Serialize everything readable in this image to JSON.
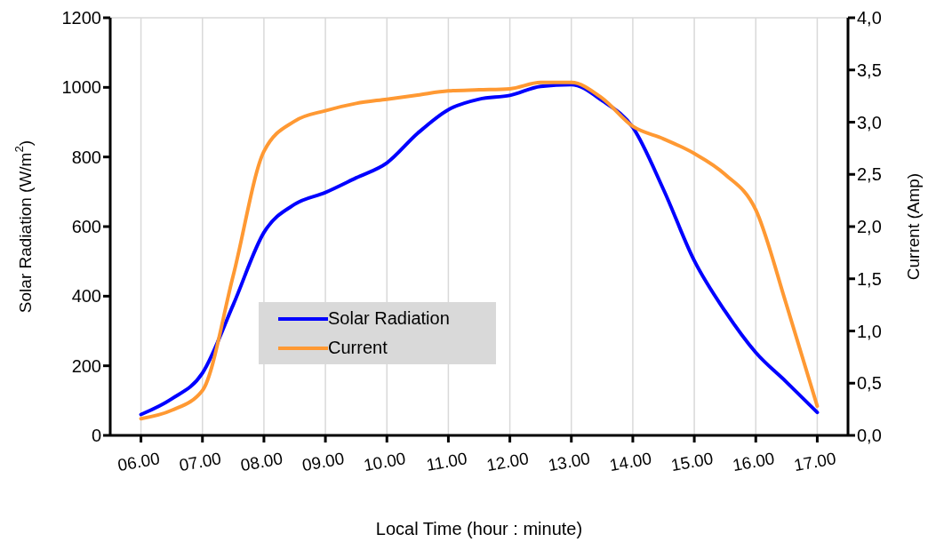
{
  "chart_data": {
    "type": "line",
    "xlabel": "Local Time (hour : minute)",
    "ylabel": "Solar Radiation (W/m$^{2}$)",
    "y2label": "Current (Amp)",
    "x": [
      6,
      6.5,
      7,
      7.5,
      8,
      8.5,
      9,
      9.5,
      10,
      10.5,
      11,
      11.5,
      12,
      12.5,
      13,
      13.5,
      14,
      14.5,
      15,
      15.5,
      16,
      16.5,
      17
    ],
    "series": [
      {
        "name": "Solar Radiation",
        "color": "#0000ff",
        "values": [
          60,
          105,
          179,
          375,
          583,
          664,
          698,
          740,
          783,
          868,
          936,
          966,
          977,
          1003,
          1008,
          962,
          885,
          706,
          502,
          357,
          238,
          153,
          66
        ]
      },
      {
        "name": "Current",
        "color": "#ff9933",
        "axis": "y2",
        "values": [
          0.16,
          0.24,
          0.43,
          1.53,
          2.72,
          3.01,
          3.11,
          3.18,
          3.22,
          3.26,
          3.3,
          3.31,
          3.32,
          3.38,
          3.38,
          3.23,
          2.96,
          2.84,
          2.7,
          2.5,
          2.16,
          1.25,
          0.28
        ]
      }
    ],
    "xlim": [
      5.5,
      17.5
    ],
    "xticks": [
      {
        "value": 6,
        "label": "06.00"
      },
      {
        "value": 7,
        "label": "07.00"
      },
      {
        "value": 8,
        "label": "08.00"
      },
      {
        "value": 9,
        "label": "09.00"
      },
      {
        "value": 10,
        "label": "10.00"
      },
      {
        "value": 11,
        "label": "11.00"
      },
      {
        "value": 12,
        "label": "12.00"
      },
      {
        "value": 13,
        "label": "13.00"
      },
      {
        "value": 14,
        "label": "14.00"
      },
      {
        "value": 15,
        "label": "15.00"
      },
      {
        "value": 16,
        "label": "16.00"
      },
      {
        "value": 17,
        "label": "17.00"
      }
    ],
    "ylim": [
      0,
      1200
    ],
    "yticks": [
      0,
      200,
      400,
      600,
      800,
      1000,
      1200
    ],
    "y2lim": [
      0,
      4
    ],
    "y2ticks": [
      {
        "value": 0,
        "label": "0,0"
      },
      {
        "value": 0.5,
        "label": "0,5"
      },
      {
        "value": 1,
        "label": "1,0"
      },
      {
        "value": 1.5,
        "label": "1,5"
      },
      {
        "value": 2,
        "label": "2,0"
      },
      {
        "value": 2.5,
        "label": "2,5"
      },
      {
        "value": 3,
        "label": "3,0"
      },
      {
        "value": 3.5,
        "label": "3,5"
      },
      {
        "value": 4,
        "label": "4,0"
      }
    ],
    "grid": true,
    "legend": "bottom left",
    "marker": "none",
    "line_style": "solid"
  }
}
